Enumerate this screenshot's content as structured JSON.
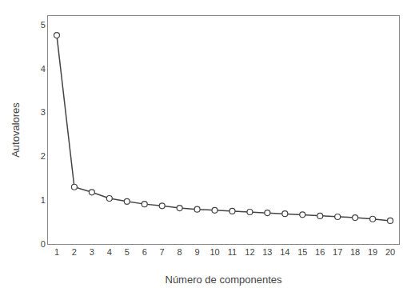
{
  "chart_data": {
    "type": "line",
    "x": [
      1,
      2,
      3,
      4,
      5,
      6,
      7,
      8,
      9,
      10,
      11,
      12,
      13,
      14,
      15,
      16,
      17,
      18,
      19,
      20
    ],
    "values": [
      4.76,
      1.3,
      1.18,
      1.04,
      0.97,
      0.91,
      0.87,
      0.82,
      0.79,
      0.77,
      0.75,
      0.73,
      0.71,
      0.69,
      0.67,
      0.64,
      0.62,
      0.6,
      0.57,
      0.53
    ],
    "xlabel": "Número de componentes",
    "ylabel": "Autovalores",
    "xlim": [
      0.5,
      20.5
    ],
    "ylim": [
      0,
      5.2
    ],
    "xticks": [
      1,
      2,
      3,
      4,
      5,
      6,
      7,
      8,
      9,
      10,
      11,
      12,
      13,
      14,
      15,
      16,
      17,
      18,
      19,
      20
    ],
    "yticks": [
      0,
      1,
      2,
      3,
      4,
      5
    ],
    "grid": false,
    "color": "#444444",
    "marker": "circle"
  }
}
